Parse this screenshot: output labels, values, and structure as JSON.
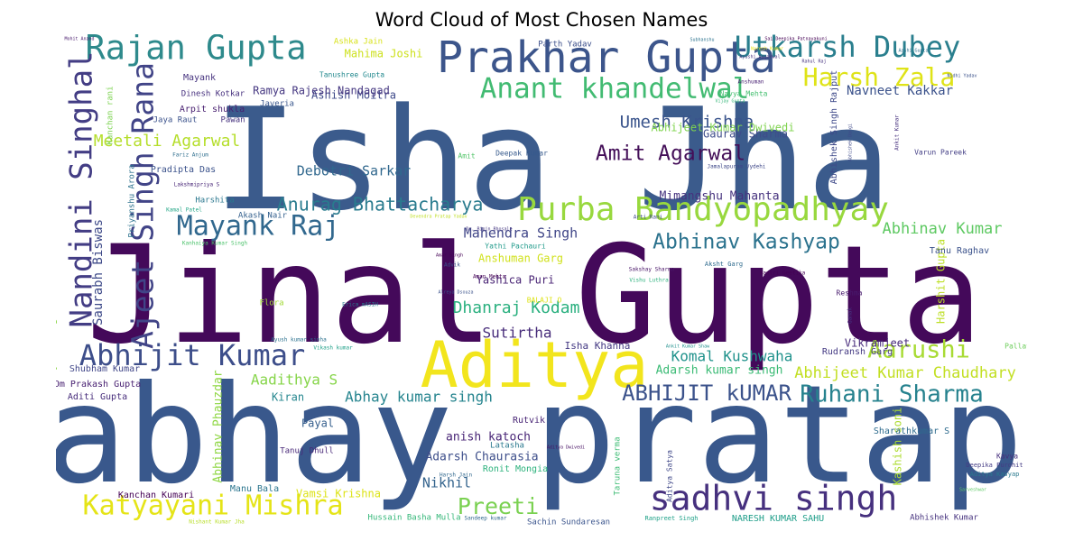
{
  "chart_data": {
    "type": "wordcloud",
    "title": "Word Cloud of Most Chosen Names",
    "colormap": "viridis",
    "background": "#ffffff",
    "words": [
      {
        "text": "Isha Jha",
        "weight": 100,
        "color": "#3b5b8c"
      },
      {
        "text": "Jinal Gupta",
        "weight": 96,
        "color": "#44095a"
      },
      {
        "text": "abhay pratap",
        "weight": 92,
        "color": "#39588c"
      },
      {
        "text": "Aditya",
        "weight": 45,
        "color": "#f2e51d"
      },
      {
        "text": "Prakhar Gupta",
        "weight": 30,
        "color": "#3c558b"
      },
      {
        "text": "Rajan Gupta",
        "weight": 24,
        "color": "#2e8a8c"
      },
      {
        "text": "Utkarsh Dubey",
        "weight": 21,
        "color": "#2a7f8e"
      },
      {
        "text": "sadhvi singh",
        "weight": 25,
        "color": "#46307e"
      },
      {
        "text": "Purba Bandyopadhyay",
        "weight": 22,
        "color": "#98d83e"
      },
      {
        "text": "Anant khandelwal",
        "weight": 20,
        "color": "#42bb72"
      },
      {
        "text": "Katyayani Mishra",
        "weight": 20,
        "color": "#e5e418"
      },
      {
        "text": "Abhijit Kumar",
        "weight": 20,
        "color": "#3d4e8a"
      },
      {
        "text": "Nandini Singhal",
        "weight": 22,
        "color": "#433d84"
      },
      {
        "text": "Ajeet Singh Rana",
        "weight": 22,
        "color": "#414487"
      },
      {
        "text": "Mayank Raj",
        "weight": 19,
        "color": "#31688e"
      },
      {
        "text": "Harsh Zala",
        "weight": 18,
        "color": "#dfe318"
      },
      {
        "text": "Ruhani Sharma",
        "weight": 17,
        "color": "#26828e"
      },
      {
        "text": "Amit Agarwal",
        "weight": 16,
        "color": "#440f58"
      },
      {
        "text": "ABHIJIT kUMAR",
        "weight": 16,
        "color": "#3b528b"
      },
      {
        "text": "Aarushi",
        "weight": 16,
        "color": "#a8db34"
      },
      {
        "text": "Abhinav Kashyap",
        "weight": 15,
        "color": "#2c738e"
      },
      {
        "text": "Preeti",
        "weight": 17,
        "color": "#7ad151"
      },
      {
        "text": "Umesh Krishna",
        "weight": 13,
        "color": "#3a548c"
      },
      {
        "text": "Anurag Bhattacharya",
        "weight": 13,
        "color": "#297b8e"
      },
      {
        "text": "Meetali Agarwal",
        "weight": 12,
        "color": "#b5de2b"
      },
      {
        "text": "Abhijeet Kumar Chaudhary",
        "weight": 12,
        "color": "#c2df23"
      },
      {
        "text": "Dhanraj Kodam",
        "weight": 12,
        "color": "#2ab07f"
      },
      {
        "text": "Komal Kushwaha",
        "weight": 11,
        "color": "#20928c"
      },
      {
        "text": "Abhinav Kumar",
        "weight": 11,
        "color": "#5ec962"
      },
      {
        "text": "Abhay kumar singh",
        "weight": 11,
        "color": "#25848e"
      },
      {
        "text": "Navneet Kakkar",
        "weight": 10,
        "color": "#3b528b"
      },
      {
        "text": "Mahendra Singh",
        "weight": 10,
        "color": "#404688"
      },
      {
        "text": "Sutirtha",
        "weight": 10,
        "color": "#472c7a"
      },
      {
        "text": "Nikhil",
        "weight": 10,
        "color": "#33638d"
      },
      {
        "text": "Debotri Sarkar",
        "weight": 9,
        "color": "#31688e"
      },
      {
        "text": "Aadithya S",
        "weight": 10,
        "color": "#86d549"
      },
      {
        "text": "Mimangshu Mahanta",
        "weight": 8,
        "color": "#46327e"
      },
      {
        "text": "Gaurav Sharma",
        "weight": 8,
        "color": "#3e4c8a"
      },
      {
        "text": "Adarsh Chaurasia",
        "weight": 8,
        "color": "#3d4e8a"
      },
      {
        "text": "anish katoch",
        "weight": 8,
        "color": "#482576"
      },
      {
        "text": "Ashish Moitra",
        "weight": 7,
        "color": "#3e4989"
      },
      {
        "text": "Ramya Rajesh Nandagad",
        "weight": 7,
        "color": "#453781"
      },
      {
        "text": "Mahima Joshi",
        "weight": 7,
        "color": "#cde11d"
      },
      {
        "text": "Abhijeet Kumar Dwivedi",
        "weight": 7,
        "color": "#7fd34e"
      },
      {
        "text": "Adarsh kumar singh",
        "weight": 8,
        "color": "#3bbb75"
      },
      {
        "text": "Yashica Puri",
        "weight": 8,
        "color": "#482374"
      },
      {
        "text": "Anshuman Garg",
        "weight": 7,
        "color": "#d0e11c"
      },
      {
        "text": "Isha Khanna",
        "weight": 7,
        "color": "#443983"
      },
      {
        "text": "Vamsi Krishna",
        "weight": 7,
        "color": "#dde318"
      },
      {
        "text": "Payal",
        "weight": 7,
        "color": "#355f8d"
      },
      {
        "text": "Kiran",
        "weight": 7,
        "color": "#24868e"
      },
      {
        "text": "Manu Bala",
        "weight": 6,
        "color": "#2b758e"
      },
      {
        "text": "Kanchan Kumari",
        "weight": 6,
        "color": "#440154"
      },
      {
        "text": "Pradipta Das",
        "weight": 6,
        "color": "#3b528b"
      },
      {
        "text": "Shubham Kumar",
        "weight": 6,
        "color": "#404688"
      },
      {
        "text": "Aditi Gupta",
        "weight": 6,
        "color": "#472d7b"
      },
      {
        "text": "Om Prakash Gupta",
        "weight": 6,
        "color": "#482071"
      },
      {
        "text": "Saurabh Biswas",
        "weight": 9,
        "color": "#3e4a89"
      },
      {
        "text": "Balram Vinayak Singh",
        "weight": 7,
        "color": "#8bd646"
      },
      {
        "text": "Abhinav Phauzdar",
        "weight": 8,
        "color": "#8fd744"
      },
      {
        "text": "Kashish soni",
        "weight": 7,
        "color": "#addc30"
      },
      {
        "text": "Harshit Gupta",
        "weight": 7,
        "color": "#bddf26"
      },
      {
        "text": "Abhishek Singh Rajput",
        "weight": 6,
        "color": "#3e4989"
      },
      {
        "text": "Vikramjeet",
        "weight": 7,
        "color": "#472a7a"
      },
      {
        "text": "Sharathkumar S",
        "weight": 6,
        "color": "#2f6c8e"
      },
      {
        "text": "Tanu Raghav",
        "weight": 6,
        "color": "#3b528b"
      },
      {
        "text": "Rudransh Garg",
        "weight": 6,
        "color": "#443a83"
      },
      {
        "text": "Ronit Mongia",
        "weight": 6,
        "color": "#2db27d"
      },
      {
        "text": "Rutvik",
        "weight": 6,
        "color": "#482475"
      },
      {
        "text": "Latasha",
        "weight": 5,
        "color": "#2a788e"
      },
      {
        "text": "Sachin Sundaresan",
        "weight": 5,
        "color": "#3a548c"
      },
      {
        "text": "Hussain Basha Mulla",
        "weight": 5,
        "color": "#35b779"
      },
      {
        "text": "Abhishek Kumar",
        "weight": 5,
        "color": "#46327e"
      },
      {
        "text": "NARESH KUMAR SAHU",
        "weight": 6,
        "color": "#1f9e89"
      },
      {
        "text": "Mayank",
        "weight": 6,
        "color": "#46337f"
      },
      {
        "text": "Dinesh Kotkar",
        "weight": 5,
        "color": "#46307e"
      },
      {
        "text": "Arpit shukla",
        "weight": 6,
        "color": "#481f70"
      },
      {
        "text": "Jaya Raut",
        "weight": 5,
        "color": "#3b528b"
      },
      {
        "text": "Pawan",
        "weight": 5,
        "color": "#46327e"
      },
      {
        "text": "Harshita",
        "weight": 5,
        "color": "#2a778e"
      },
      {
        "text": "Akash Nair",
        "weight": 5,
        "color": "#34608d"
      },
      {
        "text": "Ashka Jain",
        "weight": 5,
        "color": "#d8e219"
      },
      {
        "text": "Parth Yadav",
        "weight": 5,
        "color": "#3c4f8a"
      },
      {
        "text": "Javeria",
        "weight": 5,
        "color": "#39568c"
      },
      {
        "text": "Tanushree Gupta",
        "weight": 4,
        "color": "#23898e"
      },
      {
        "text": "Deepak Kumar",
        "weight": 4,
        "color": "#375a8c"
      },
      {
        "text": "Amit",
        "weight": 4,
        "color": "#52c569"
      },
      {
        "text": "Navya Mehta",
        "weight": 4,
        "color": "#44bf70"
      },
      {
        "text": "Varun Pareek",
        "weight": 4,
        "color": "#433e85"
      },
      {
        "text": "Pallavi",
        "weight": 4,
        "color": "#6ccd5a"
      },
      {
        "text": "Kavya",
        "weight": 4,
        "color": "#472f7d"
      },
      {
        "text": "Deepika Purohit",
        "weight": 4,
        "color": "#443b84"
      },
      {
        "text": "Aditya Kasyap",
        "weight": 4,
        "color": "#29798e"
      },
      {
        "text": "Reshma",
        "weight": 4,
        "color": "#481b6d"
      },
      {
        "text": "Flora",
        "weight": 5,
        "color": "#a2da37"
      },
      {
        "text": "Kanchan rani",
        "weight": 5,
        "color": "#7cd250"
      },
      {
        "text": "Priyanshu Arora",
        "weight": 5,
        "color": "#2c728e"
      },
      {
        "text": "Tanuj Dhull",
        "weight": 5,
        "color": "#482878"
      },
      {
        "text": "Yathi Pachauri",
        "weight": 4,
        "color": "#1f9a8a"
      },
      {
        "text": "Taruna verma",
        "weight": 5,
        "color": "#3dbc74"
      },
      {
        "text": "Aditya Satya",
        "weight": 4,
        "color": "#3f4788"
      },
      {
        "text": "Arti Rani",
        "weight": 3,
        "color": "#3e4a89"
      },
      {
        "text": "Aman Mehta",
        "weight": 3,
        "color": "#440154"
      },
      {
        "text": "Sakshay Sharma",
        "weight": 3,
        "color": "#481467"
      },
      {
        "text": "Vishu Luthra",
        "weight": 3,
        "color": "#2db27d"
      },
      {
        "text": "Aksht Garg",
        "weight": 4,
        "color": "#2f6b8e"
      },
      {
        "text": "Ankit Kumar",
        "weight": 3,
        "color": "#46307e"
      },
      {
        "text": "Anshuman",
        "weight": 3,
        "color": "#482173"
      },
      {
        "text": "BALAJI O",
        "weight": 4,
        "color": "#dde318"
      },
      {
        "text": "Advik",
        "weight": 3,
        "color": "#3b528b"
      },
      {
        "text": "Erica mASIH",
        "weight": 3,
        "color": "#2a768e"
      },
      {
        "text": "Mantri Geetika",
        "weight": 3,
        "color": "#440154"
      },
      {
        "text": "Lakshmipriya S",
        "weight": 3,
        "color": "#482677"
      },
      {
        "text": "Fariz Anjum",
        "weight": 3,
        "color": "#2e6e8e"
      },
      {
        "text": "Kamal Patel",
        "weight": 3,
        "color": "#21a585"
      },
      {
        "text": "Kanhaiya Kumar Singh",
        "weight": 3,
        "color": "#4cc26c"
      },
      {
        "text": "Ayush kumar sinha",
        "weight": 3,
        "color": "#2c718e"
      },
      {
        "text": "Vikash kumar",
        "weight": 3,
        "color": "#1fa088"
      },
      {
        "text": "Mohit Anand",
        "weight": 2,
        "color": "#481a6c"
      },
      {
        "text": "Nishant Kumar Jha",
        "weight": 3,
        "color": "#b8de29"
      },
      {
        "text": "Sandeep kumar",
        "weight": 3,
        "color": "#31688e"
      },
      {
        "text": "Ranpreet Singh",
        "weight": 3,
        "color": "#1fa188"
      },
      {
        "text": "Jamalapuram Vydehi",
        "weight": 3,
        "color": "#3f4889"
      },
      {
        "text": "Devendra Pratap Yadav",
        "weight": 2,
        "color": "#c0df25"
      },
      {
        "text": "Dr. Bipin Bhosale",
        "weight": 2,
        "color": "#453781"
      },
      {
        "text": "Amar Singh",
        "weight": 2,
        "color": "#440154"
      },
      {
        "text": "Alreya Dsouza",
        "weight": 2,
        "color": "#3b528b"
      },
      {
        "text": "Harsh Jain",
        "weight": 3,
        "color": "#31688e"
      },
      {
        "text": "Ayushi Aggarwal",
        "weight": 2,
        "color": "#46327e"
      },
      {
        "text": "Naresh Kumar",
        "weight": 2,
        "color": "#efe51c"
      },
      {
        "text": "Abhishek Dangi",
        "weight": 2,
        "color": "#3e4989"
      },
      {
        "text": "Gamak",
        "weight": 3,
        "color": "#463480"
      },
      {
        "text": "Sarveshwar",
        "weight": 2,
        "color": "#5cc863"
      },
      {
        "text": "Aditya Dwivedi",
        "weight": 2,
        "color": "#471063"
      },
      {
        "text": "Ankit Kumar Shaw",
        "weight": 2,
        "color": "#21908d"
      },
      {
        "text": "Aashi Gupta",
        "weight": 2,
        "color": "#2d708e"
      },
      {
        "text": "Nidhi Yadav",
        "weight": 2,
        "color": "#3b528b"
      },
      {
        "text": "Rahul Raj",
        "weight": 2,
        "color": "#46337f"
      },
      {
        "text": "Vijay Gupta",
        "weight": 2,
        "color": "#35b779"
      },
      {
        "text": "Sai Deepika Patnayakuni",
        "weight": 2,
        "color": "#440154"
      },
      {
        "text": "Subhanshu",
        "weight": 2,
        "color": "#2c738e"
      }
    ]
  }
}
